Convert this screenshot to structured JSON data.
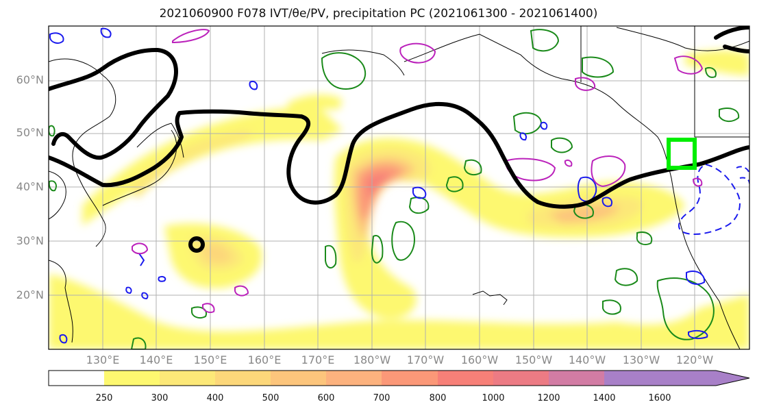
{
  "title": "2021060900 F078 IVT/θe/PV, precipitation PC (2021061300 - 2021061400)",
  "map": {
    "lat_labels": [
      "60°N",
      "50°N",
      "40°N",
      "30°N",
      "20°N"
    ],
    "lon_labels": [
      "130°E",
      "140°E",
      "150°E",
      "160°E",
      "170°E",
      "180°W",
      "170°W",
      "160°W",
      "150°W",
      "140°W",
      "130°W",
      "120°W"
    ],
    "grid": true,
    "field": "IVT",
    "contour_colors": {
      "pv_thick": "#000000",
      "theta_e_green": "#1a8a1a",
      "blue": "#1a1aee",
      "magenta": "#bb22bb",
      "box": "#00ee00"
    }
  },
  "colorbar": {
    "ticks": [
      "250",
      "300",
      "400",
      "500",
      "600",
      "700",
      "800",
      "1000",
      "1200",
      "1400",
      "1600"
    ],
    "colors": [
      "#ffffff",
      "#fdf870",
      "#fce878",
      "#fcd77a",
      "#fcc57c",
      "#fcb27e",
      "#fb9878",
      "#f78078",
      "#ec7b84",
      "#d27ca4",
      "#a880c8"
    ],
    "extend": "max"
  }
}
